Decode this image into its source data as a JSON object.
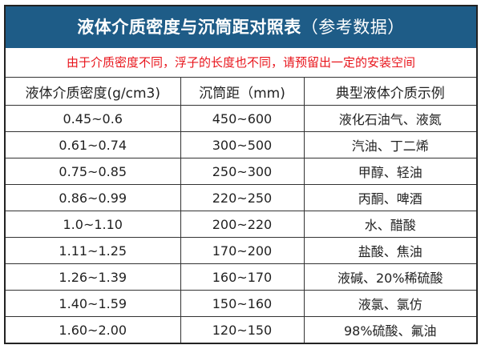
{
  "title": "液体介质密度与沉筒距对照表",
  "title_suffix": "（参考数据）",
  "note": "由于介质密度不同，浮子的长度也不同，请预留出一定的安装空间",
  "columns": [
    "液体介质密度(g/cm3)",
    "沉筒距（mm)",
    "典型液体介质示例"
  ],
  "rows": [
    [
      "0.45~0.6",
      "450~600",
      "液化石油气、液氮"
    ],
    [
      "0.61~0.74",
      "300~500",
      "汽油、丁二烯"
    ],
    [
      "0.75~0.85",
      "250~300",
      "甲醇、轻油"
    ],
    [
      "0.86~0.99",
      "220~250",
      "丙酮、啤酒"
    ],
    [
      "1.0~1.10",
      "200~220",
      "水、醋酸"
    ],
    [
      "1.11~1.25",
      "170~200",
      "盐酸、焦油"
    ],
    [
      "1.26~1.39",
      "160~170",
      "液碱、20%稀硫酸"
    ],
    [
      "1.40~1.59",
      "150~160",
      "液氯、氯仿"
    ],
    [
      "1.60~2.00",
      "120~150",
      "98%硫酸、氟油"
    ]
  ],
  "colors": {
    "header_bg": "#1e5c87",
    "note": "#e8141b"
  }
}
